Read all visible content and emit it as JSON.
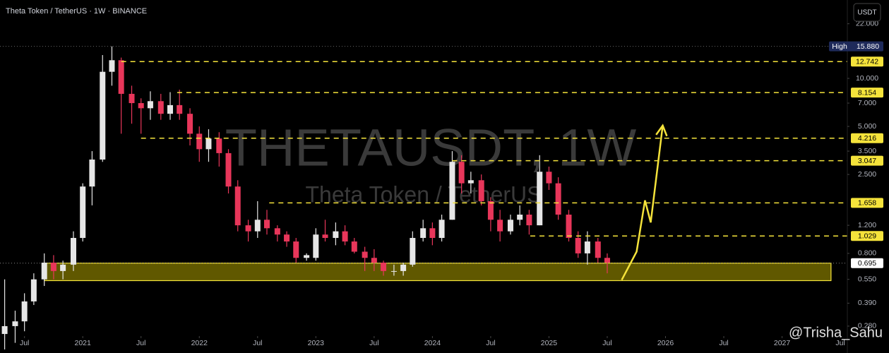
{
  "chart_data": {
    "type": "candlestick",
    "title": "Theta Token / TetherUS · 1W · BINANCE",
    "currency": "USDT",
    "watermark": {
      "symbol": "THETAUSDT, 1W",
      "name": "Theta Token / TetherUS"
    },
    "author": "@Trisha_Sahu",
    "log_scale": true,
    "grid": false,
    "up_color": "#e6e6e6",
    "down_color": "#e8365a",
    "level_color": "#f5e33b",
    "xlim": [
      2020.29,
      2027.56
    ],
    "ylim": [
      0.19,
      31
    ],
    "xticks": [
      {
        "value": 2020.5,
        "label": "Jul"
      },
      2021,
      {
        "value": 2021.5,
        "label": "Jul"
      },
      2022,
      {
        "value": 2022.5,
        "label": "Jul"
      },
      2023,
      {
        "value": 2023.5,
        "label": "Jul"
      },
      2024,
      {
        "value": 2024.5,
        "label": "Jul"
      },
      2025,
      {
        "value": 2025.5,
        "label": "Jul"
      },
      2026,
      {
        "value": 2026.5,
        "label": "Jul"
      },
      2027,
      {
        "value": 2027.5,
        "label": "Jul"
      }
    ],
    "yticks": [
      {
        "value": 22,
        "label": "22.000"
      },
      {
        "value": 10,
        "label": "10.000"
      },
      {
        "value": 7,
        "label": "7.000"
      },
      {
        "value": 5,
        "label": "5.000"
      },
      {
        "value": 3.5,
        "label": "3.500"
      },
      {
        "value": 2.5,
        "label": "2.500"
      },
      {
        "value": 1.2,
        "label": "1.200"
      },
      {
        "value": 0.8,
        "label": "0.800"
      },
      {
        "value": 0.55,
        "label": "0.550"
      },
      {
        "value": 0.39,
        "label": "0.390"
      },
      {
        "value": 0.28,
        "label": "0.280"
      }
    ],
    "x": [
      2020.33,
      2020.42,
      2020.5,
      2020.58,
      2020.67,
      2020.75,
      2020.83,
      2020.92,
      2021.0,
      2021.08,
      2021.17,
      2021.25,
      2021.33,
      2021.42,
      2021.5,
      2021.58,
      2021.67,
      2021.75,
      2021.83,
      2021.92,
      2022.0,
      2022.08,
      2022.17,
      2022.25,
      2022.33,
      2022.42,
      2022.5,
      2022.58,
      2022.67,
      2022.75,
      2022.83,
      2022.92,
      2023.0,
      2023.08,
      2023.17,
      2023.25,
      2023.33,
      2023.42,
      2023.5,
      2023.58,
      2023.67,
      2023.75,
      2023.83,
      2023.92,
      2024.0,
      2024.08,
      2024.17,
      2024.25,
      2024.33,
      2024.42,
      2024.5,
      2024.58,
      2024.67,
      2024.75,
      2024.83,
      2024.92,
      2025.0,
      2025.08,
      2025.17,
      2025.25,
      2025.33,
      2025.42,
      2025.5
    ],
    "open": [
      0.25,
      0.28,
      0.3,
      0.4,
      0.55,
      0.7,
      0.62,
      0.68,
      1.0,
      2.1,
      3.1,
      11,
      13,
      8,
      7,
      6.5,
      7.2,
      6,
      6.8,
      6,
      4.5,
      3.6,
      4.2,
      3.4,
      2.1,
      1.2,
      1.1,
      1.3,
      1.15,
      1.05,
      0.95,
      0.75,
      0.75,
      1.05,
      1.0,
      1.1,
      0.95,
      0.82,
      0.75,
      0.7,
      0.62,
      0.62,
      0.68,
      1.0,
      1.15,
      1.0,
      1.3,
      3.0,
      2.2,
      2.3,
      1.7,
      1.3,
      1.1,
      1.3,
      1.4,
      1.2,
      2.6,
      2.2,
      1.4,
      1.0,
      0.8,
      0.95,
      0.75
    ],
    "high": [
      0.55,
      0.35,
      0.45,
      0.6,
      0.8,
      0.78,
      0.72,
      1.1,
      2.2,
      3.5,
      14,
      15.88,
      13.5,
      9,
      7.5,
      8.3,
      8,
      8.2,
      8.5,
      6.5,
      5,
      4.8,
      4.6,
      3.6,
      2.3,
      1.3,
      1.7,
      1.5,
      1.2,
      1.1,
      1.0,
      0.8,
      1.15,
      1.3,
      1.25,
      1.2,
      1.0,
      0.88,
      0.85,
      0.72,
      0.68,
      0.7,
      1.1,
      1.3,
      1.25,
      1.4,
      3.5,
      3.3,
      2.6,
      2.5,
      1.8,
      1.5,
      1.4,
      1.6,
      1.5,
      3.3,
      2.8,
      2.4,
      1.5,
      1.1,
      1.1,
      1.0,
      0.8
    ],
    "low": [
      0.2,
      0.22,
      0.26,
      0.38,
      0.5,
      0.55,
      0.55,
      0.62,
      0.95,
      1.6,
      3,
      9,
      4.5,
      5.2,
      4.5,
      5.5,
      5.5,
      5.5,
      5.5,
      3.8,
      3,
      3,
      2.8,
      1.9,
      1.1,
      0.95,
      1.0,
      1.05,
      0.95,
      0.88,
      0.7,
      0.72,
      0.72,
      0.95,
      0.9,
      0.9,
      0.8,
      0.62,
      0.62,
      0.58,
      0.58,
      0.58,
      0.66,
      0.95,
      0.9,
      0.95,
      1.3,
      1.9,
      1.9,
      1.6,
      1.1,
      0.95,
      1.05,
      1.2,
      1.05,
      1.2,
      2.0,
      1.3,
      0.95,
      0.75,
      0.68,
      0.7,
      0.6
    ],
    "close": [
      0.28,
      0.3,
      0.4,
      0.55,
      0.7,
      0.62,
      0.68,
      1.0,
      2.1,
      3.1,
      11,
      13,
      8,
      7,
      6.5,
      7.2,
      6,
      6.8,
      6,
      4.5,
      3.6,
      4.2,
      3.4,
      2.1,
      1.2,
      1.1,
      1.3,
      1.15,
      1.05,
      0.95,
      0.75,
      0.78,
      1.05,
      1.0,
      1.1,
      0.95,
      0.82,
      0.75,
      0.7,
      0.62,
      0.62,
      0.68,
      1.0,
      1.15,
      1.0,
      1.3,
      3.0,
      2.2,
      2.3,
      1.7,
      1.3,
      1.1,
      1.3,
      1.4,
      1.2,
      2.6,
      2.2,
      1.4,
      1.0,
      0.8,
      0.95,
      0.75,
      0.7
    ],
    "levels": [
      {
        "value": 12.742,
        "from": 2021.33
      },
      {
        "value": 8.154,
        "from": 2021.81
      },
      {
        "value": 4.216,
        "from": 2021.5
      },
      {
        "value": 3.047,
        "from": 2024.17
      },
      {
        "value": 1.658,
        "from": 2022.6
      },
      {
        "value": 1.029,
        "from": 2024.84
      }
    ],
    "high_marker": {
      "name": "High",
      "value": 15.88,
      "value_label": "15.880"
    },
    "last_price": 0.695,
    "zone": {
      "x": [
        2020.67,
        2027.42
      ],
      "y": [
        0.54,
        0.695
      ]
    },
    "projection": {
      "x": [
        2025.624,
        2025.752,
        2025.824,
        2025.873,
        2025.976
      ],
      "y": [
        0.545,
        0.82,
        1.72,
        1.25,
        5.06
      ]
    }
  }
}
